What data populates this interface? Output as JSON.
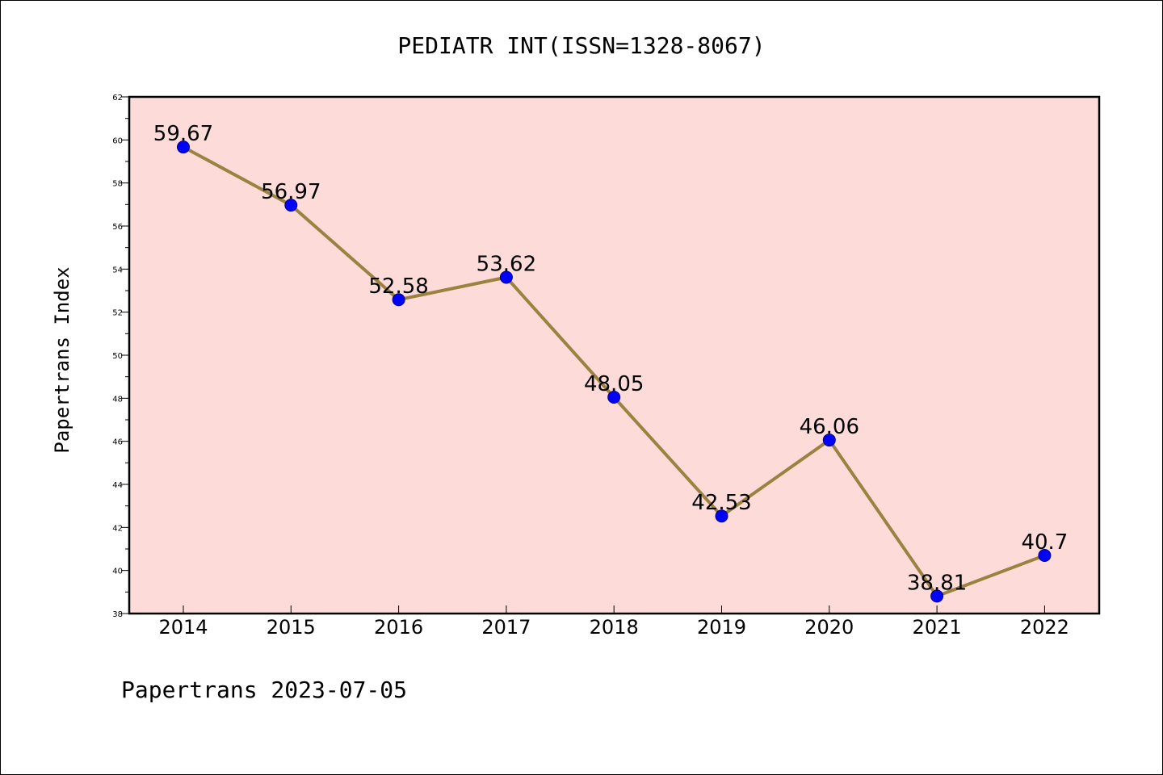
{
  "chart_data": {
    "type": "line",
    "title": "PEDIATR INT(ISSN=1328-8067)",
    "xlabel": "",
    "ylabel": "Papertrans Index",
    "footer": "Papertrans 2023-07-05",
    "categories": [
      "2014",
      "2015",
      "2016",
      "2017",
      "2018",
      "2019",
      "2020",
      "2021",
      "2022"
    ],
    "values": [
      59.67,
      56.97,
      52.58,
      53.62,
      48.05,
      42.53,
      46.06,
      38.81,
      40.7
    ],
    "value_labels": [
      "59.67",
      "56.97",
      "52.58",
      "53.62",
      "48.05",
      "42.53",
      "46.06",
      "38.81",
      "40.7"
    ],
    "ylim": [
      38,
      62
    ],
    "yticks": [
      "38",
      "40",
      "42",
      "44",
      "46",
      "48",
      "50",
      "52",
      "54",
      "56",
      "58",
      "60",
      "62"
    ],
    "grid": false,
    "legend": "none",
    "colors": {
      "plot_background": "#fddbd9",
      "line": "#9b8240",
      "marker": "#0000ff",
      "marker_edge": "#000080",
      "axes": "#000000"
    }
  }
}
